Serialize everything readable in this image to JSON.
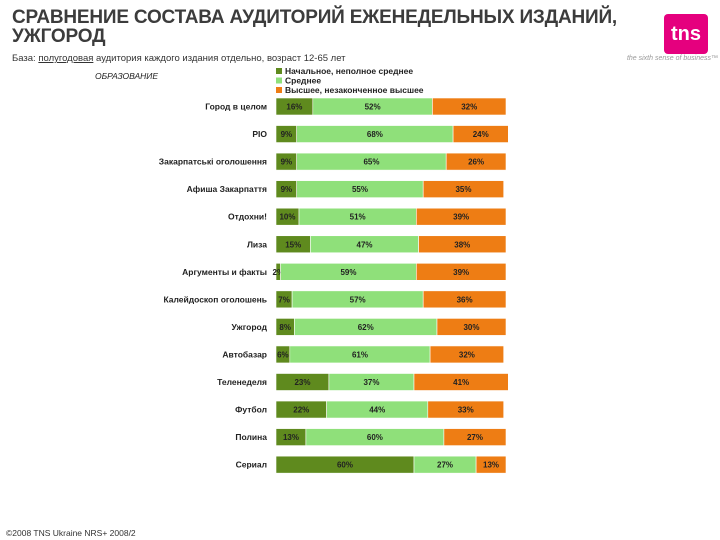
{
  "header": {
    "title": "СРАВНЕНИЕ СОСТАВА АУДИТОРИЙ ЕЖЕНЕДЕЛЬНЫХ ИЗДАНИЙ, УЖГОРОД",
    "subtitle_prefix": "База:",
    "subtitle_underlined": "полугодовая",
    "subtitle_rest": "аудитория каждого издания отдельно, возраст 12-65 лет"
  },
  "brand": {
    "logo_text": "tns",
    "tagline": "the sixth sense of business™",
    "logo_color": "#e5007e"
  },
  "footer": {
    "text": "©2008 TNS Ukraine  NRS+ 2008/2"
  },
  "chart_data": {
    "type": "bar",
    "orientation": "horizontal",
    "stacked": "percent",
    "section_label": "ОБРАЗОВАНИЕ",
    "categories": [
      "Город в целом",
      "PIO",
      "Закарпатські оголошення",
      "Афиша Закарпаття",
      "Отдохни!",
      "Лиза",
      "Аргументы и факты",
      "Калейдоскоп оголошень",
      "Ужгород",
      "Автобазар",
      "Теленеделя",
      "Футбол",
      "Полина",
      "Сериал"
    ],
    "series": [
      {
        "name": "Начальное, неполное среднее",
        "color": "#5f8a1e",
        "values": [
          16,
          9,
          9,
          9,
          10,
          15,
          2,
          7,
          8,
          6,
          23,
          22,
          13,
          60
        ]
      },
      {
        "name": "Среднее",
        "color": "#8fe07a",
        "values": [
          52,
          68,
          65,
          55,
          51,
          47,
          59,
          57,
          62,
          61,
          37,
          44,
          60,
          27
        ]
      },
      {
        "name": "Высшее, незаконченное высшее",
        "color": "#ee7d14",
        "values": [
          32,
          24,
          26,
          35,
          39,
          38,
          39,
          36,
          30,
          32,
          41,
          33,
          27,
          13
        ]
      }
    ],
    "value_suffix": "%",
    "xlim": [
      0,
      100
    ],
    "legend": "top"
  }
}
